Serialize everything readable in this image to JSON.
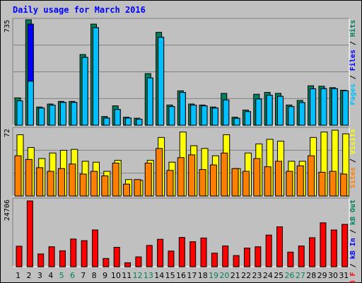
{
  "title": "Daily usage for March 2016",
  "colors": {
    "hits": "#00805c",
    "files": "#0000ff",
    "pages": "#00c0ff",
    "visits": "#ffff00",
    "sites": "#ff8000",
    "kb_out": "#ff0000"
  },
  "chart_data": [
    {
      "type": "bar",
      "name": "hits-files-pages",
      "scale_label": "735",
      "legend": [
        "Pages",
        "Files",
        "Hits"
      ],
      "ylim": [
        0,
        735
      ],
      "categories": [
        "1",
        "2",
        "3",
        "4",
        "5",
        "6",
        "7",
        "8",
        "9",
        "10",
        "11",
        "12",
        "13",
        "14",
        "15",
        "16",
        "17",
        "18",
        "19",
        "20",
        "21",
        "22",
        "23",
        "24",
        "25",
        "26",
        "27",
        "28",
        "29",
        "30",
        "31"
      ],
      "series": [
        {
          "name": "Hits",
          "values": [
            191,
            735,
            127,
            148,
            166,
            166,
            493,
            705,
            61,
            135,
            56,
            49,
            360,
            648,
            141,
            240,
            148,
            141,
            127,
            222,
            56,
            106,
            216,
            229,
            222,
            141,
            173,
            275,
            272,
            262,
            244
          ]
        },
        {
          "name": "Files",
          "values": [
            170,
            705,
            120,
            140,
            159,
            159,
            473,
            680,
            50,
            110,
            50,
            42,
            330,
            613,
            130,
            229,
            140,
            135,
            120,
            176,
            48,
            95,
            183,
            209,
            201,
            130,
            158,
            254,
            255,
            255,
            240
          ]
        },
        {
          "name": "Pages",
          "values": [
            170,
            307,
            120,
            140,
            159,
            159,
            473,
            680,
            50,
            110,
            50,
            42,
            330,
            613,
            130,
            229,
            140,
            135,
            120,
            176,
            48,
            95,
            183,
            209,
            201,
            130,
            158,
            254,
            255,
            255,
            240
          ]
        }
      ]
    },
    {
      "type": "bar",
      "name": "visits-sites",
      "scale_label": "72",
      "legend": [
        "Sites",
        "Visits"
      ],
      "ylim": [
        0,
        72
      ],
      "categories": [
        "1",
        "2",
        "3",
        "4",
        "5",
        "6",
        "7",
        "8",
        "9",
        "10",
        "11",
        "12",
        "13",
        "14",
        "15",
        "16",
        "17",
        "18",
        "19",
        "20",
        "21",
        "22",
        "23",
        "24",
        "25",
        "26",
        "27",
        "28",
        "29",
        "30",
        "31"
      ],
      "series": [
        {
          "name": "Visits",
          "values": [
            67,
            53,
            41,
            47,
            50,
            51,
            38,
            37,
            27,
            39,
            18,
            17,
            39,
            64,
            37,
            70,
            55,
            52,
            44,
            67,
            30,
            47,
            57,
            62,
            60,
            38,
            38,
            64,
            70,
            72,
            68
          ]
        },
        {
          "name": "Sites",
          "values": [
            44,
            40,
            31,
            27,
            30,
            35,
            24,
            27,
            22,
            36,
            13,
            18,
            36,
            52,
            28,
            42,
            45,
            29,
            34,
            47,
            30,
            27,
            41,
            32,
            38,
            27,
            33,
            44,
            26,
            27,
            24
          ]
        }
      ]
    },
    {
      "type": "bar",
      "name": "kb-out",
      "scale_label": "24706",
      "legend": [
        "kB F",
        "kB In",
        "kB Out"
      ],
      "ylim": [
        0,
        24706
      ],
      "categories": [
        "1",
        "2",
        "3",
        "4",
        "5",
        "6",
        "7",
        "8",
        "9",
        "10",
        "11",
        "12",
        "13",
        "14",
        "15",
        "16",
        "17",
        "18",
        "19",
        "20",
        "21",
        "22",
        "23",
        "24",
        "25",
        "26",
        "27",
        "28",
        "29",
        "30",
        "31"
      ],
      "series": [
        {
          "name": "kB Out",
          "values": [
            7700,
            24706,
            4800,
            7500,
            6000,
            10400,
            9800,
            13800,
            3100,
            7300,
            1500,
            3700,
            8000,
            10300,
            5900,
            11000,
            9400,
            10800,
            5100,
            7800,
            4200,
            7000,
            7500,
            11900,
            15000,
            5500,
            7800,
            10900,
            16500,
            13800,
            15900
          ]
        }
      ]
    }
  ],
  "day_colors": {
    "weekday": "#000000",
    "weekend": "#00805c",
    "weekend_days": [
      5,
      6,
      12,
      13,
      19,
      20,
      26,
      27
    ]
  }
}
